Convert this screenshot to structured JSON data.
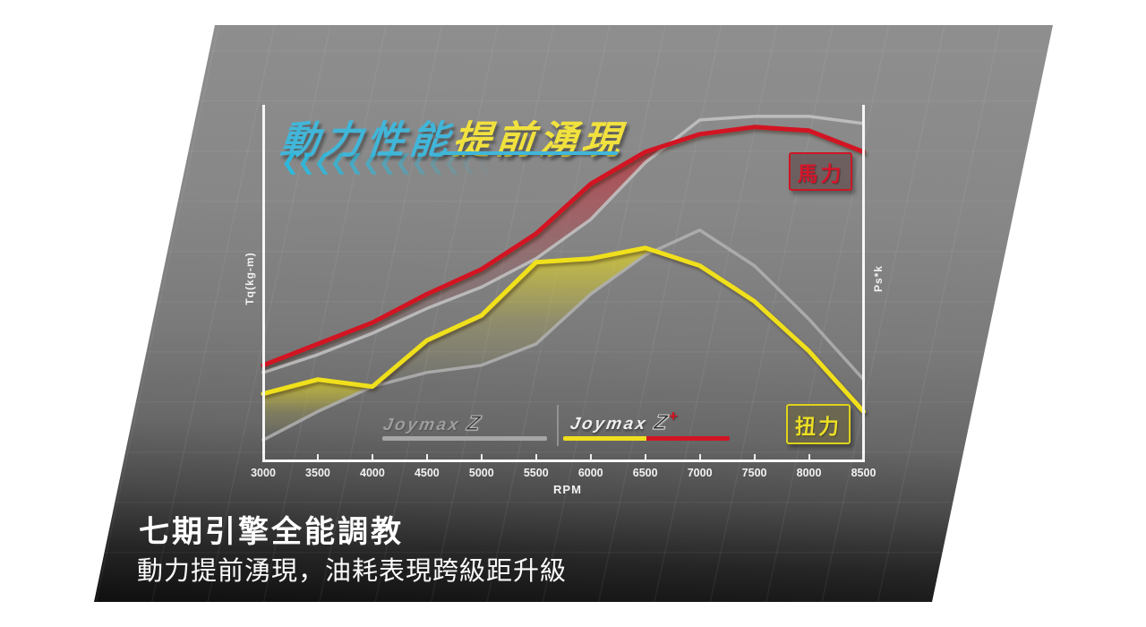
{
  "title": {
    "part1": "動力性能",
    "part2": "提前湧現"
  },
  "decor": {
    "chevron_glyph": "❮",
    "chevron_count": 14,
    "chevron_color_start": "#2cb9dd"
  },
  "badges": {
    "power": "馬力",
    "torque": "扭力"
  },
  "axes": {
    "x_label": "RPM",
    "x_ticks": [
      "3000",
      "3500",
      "4000",
      "4500",
      "5000",
      "5500",
      "6000",
      "6500",
      "7000",
      "7500",
      "8000",
      "8500"
    ],
    "y_left_label": "Tq(kg-m)",
    "y_right_label": "Ps*k"
  },
  "legend": {
    "old": {
      "brand": "Joymax",
      "model": "Z"
    },
    "new": {
      "brand": "Joymax",
      "model": "Z",
      "plus": "+"
    }
  },
  "caption": {
    "heading": "七期引擎全能調教",
    "subtitle": "動力提前湧現，油耗表現跨級距升級"
  },
  "colors": {
    "accent_cyan": "#41b6d9",
    "accent_yellow": "#f1e13e",
    "curve_red": "#d31422",
    "curve_yellow": "#f0e01c",
    "curve_gray_power": "#c4c4c4",
    "curve_gray_torque": "#b2b2b2"
  },
  "chart_data": {
    "type": "line",
    "title": "動力性能提前湧現",
    "xlabel": "RPM",
    "ylabel_left": "Tq(kg-m)",
    "ylabel_right": "Ps*k",
    "value_scale": "relative-percent-0-100 (no numeric y ticks shown)",
    "x": [
      3000,
      3500,
      4000,
      4500,
      5000,
      5500,
      6000,
      6500,
      7000,
      7500,
      8000,
      8500
    ],
    "series": [
      {
        "name": "Joymax Z+ 馬力",
        "color": "#d31422",
        "width": 5,
        "values": [
          27,
          33,
          39,
          47,
          54,
          64,
          78,
          87,
          92,
          94,
          93,
          87
        ]
      },
      {
        "name": "Joymax Z 馬力",
        "color": "#c4c4c4",
        "width": 3.5,
        "values": [
          25,
          30,
          36,
          43,
          49,
          57,
          68,
          84,
          96,
          97,
          97,
          95
        ]
      },
      {
        "name": "Joymax Z+ 扭力",
        "color": "#f0e01c",
        "width": 5,
        "values": [
          19,
          23,
          21,
          34,
          41,
          56,
          57,
          60,
          55,
          45,
          31,
          14
        ]
      },
      {
        "name": "Joymax Z 扭力",
        "color": "#b2b2b2",
        "width": 3.5,
        "values": [
          6,
          14,
          21,
          25,
          27,
          33,
          47,
          58,
          65,
          55,
          40,
          23
        ]
      }
    ],
    "fills": [
      {
        "upper": 0,
        "lower": 1,
        "gradient": "grad-red"
      },
      {
        "upper": 2,
        "lower": 3,
        "gradient": "grad-yellow"
      }
    ],
    "legend_position": "bottom-center",
    "grid": true
  }
}
